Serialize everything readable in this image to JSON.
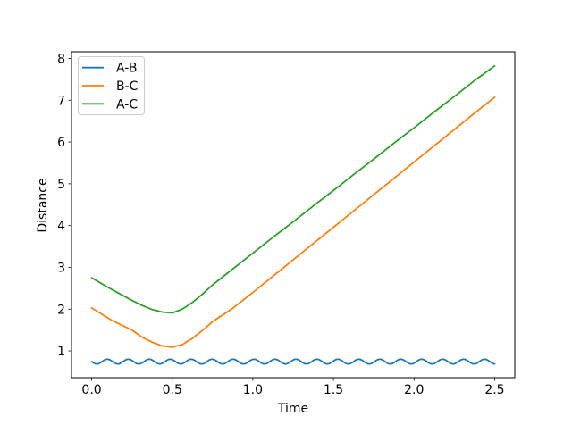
{
  "figure": {
    "background": "#ffffff"
  },
  "chart_data": {
    "type": "line",
    "title": "",
    "xlabel": "Time",
    "ylabel": "Distance",
    "xlim": [
      -0.125,
      2.625
    ],
    "ylim": [
      0.36,
      8.16
    ],
    "xticks": [
      "0.0",
      "0.5",
      "1.0",
      "1.5",
      "2.0",
      "2.5"
    ],
    "xtick_values": [
      0.0,
      0.5,
      1.0,
      1.5,
      2.0,
      2.5
    ],
    "yticks": [
      "1",
      "2",
      "3",
      "4",
      "5",
      "6",
      "7",
      "8"
    ],
    "ytick_values": [
      1,
      2,
      3,
      4,
      5,
      6,
      7,
      8
    ],
    "grid": false,
    "legend": {
      "position": "upper-left",
      "entries": [
        "A-B",
        "B-C",
        "A-C"
      ]
    },
    "colors": {
      "A-B": "#1f77b4",
      "B-C": "#ff7f0e",
      "A-C": "#2ca02c",
      "spine": "#000000",
      "legend_border": "#cccccc"
    },
    "series": [
      {
        "name": "A-B",
        "color": "#1f77b4",
        "kind": "wave",
        "wave": {
          "base": 0.745,
          "amplitude": 0.057,
          "period": 0.13,
          "phase_t": 0.065,
          "t_start": 0.0,
          "t_end": 2.5,
          "step": 0.005
        }
      },
      {
        "name": "B-C",
        "color": "#ff7f0e",
        "kind": "points",
        "x": [
          0.0,
          0.125,
          0.25,
          0.3125,
          0.375,
          0.4375,
          0.5,
          0.5625,
          0.625,
          0.6875,
          0.75,
          0.875,
          1.0,
          1.125,
          1.25,
          1.375,
          1.5,
          1.625,
          1.75,
          1.875,
          2.0,
          2.125,
          2.25,
          2.375,
          2.5
        ],
        "y": [
          2.03,
          1.73,
          1.5,
          1.33,
          1.21,
          1.12,
          1.09,
          1.15,
          1.3,
          1.49,
          1.7,
          2.02,
          2.4,
          2.79,
          3.18,
          3.57,
          3.96,
          4.35,
          4.74,
          5.13,
          5.52,
          5.91,
          6.3,
          6.69,
          7.07
        ]
      },
      {
        "name": "A-C",
        "color": "#2ca02c",
        "kind": "points",
        "x": [
          0.0,
          0.125,
          0.25,
          0.3125,
          0.375,
          0.4375,
          0.5,
          0.5625,
          0.625,
          0.6875,
          0.75,
          0.875,
          1.0,
          1.125,
          1.25,
          1.375,
          1.5,
          1.625,
          1.75,
          1.875,
          2.0,
          2.125,
          2.25,
          2.375,
          2.5
        ],
        "y": [
          2.75,
          2.47,
          2.21,
          2.09,
          1.99,
          1.93,
          1.91,
          2.0,
          2.16,
          2.36,
          2.58,
          2.96,
          3.34,
          3.72,
          4.09,
          4.47,
          4.84,
          5.22,
          5.59,
          5.97,
          6.34,
          6.72,
          7.09,
          7.47,
          7.82
        ]
      }
    ]
  }
}
